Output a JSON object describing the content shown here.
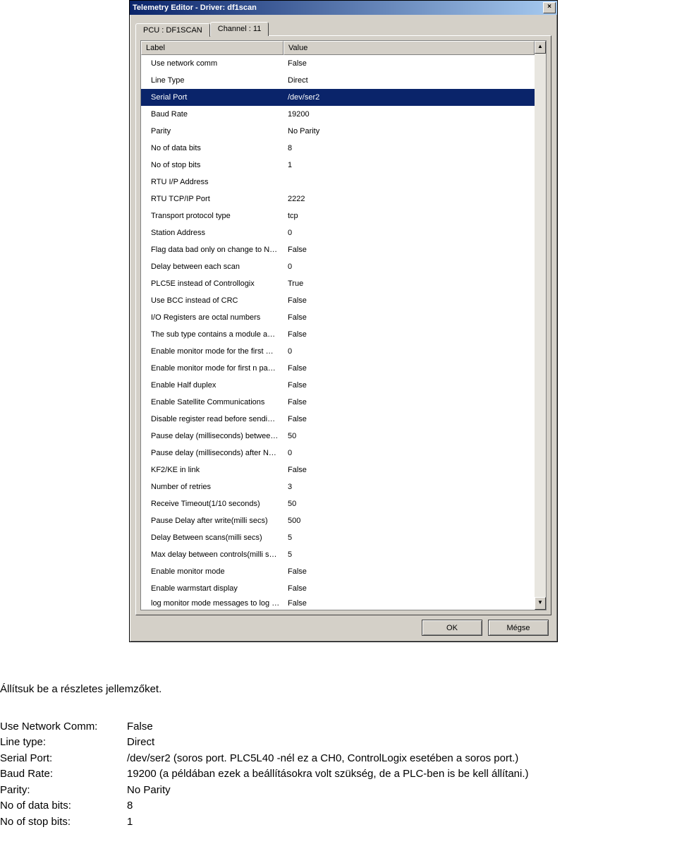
{
  "window": {
    "title": "Telemetry Editor - Driver: df1scan",
    "close_glyph": "×"
  },
  "tabs": {
    "inactive_label": "PCU : DF1SCAN",
    "active_label": "Channel : 11"
  },
  "columns": {
    "label": "Label",
    "value": "Value"
  },
  "rows": [
    {
      "label": "Use network comm",
      "value": "False",
      "selected": false
    },
    {
      "label": "Line Type",
      "value": "Direct",
      "selected": false
    },
    {
      "label": "Serial Port",
      "value": "/dev/ser2",
      "selected": true
    },
    {
      "label": "Baud Rate",
      "value": "19200",
      "selected": false
    },
    {
      "label": "Parity",
      "value": "No Parity",
      "selected": false
    },
    {
      "label": "No of data bits",
      "value": "8",
      "selected": false
    },
    {
      "label": "No of stop bits",
      "value": "1",
      "selected": false
    },
    {
      "label": "RTU I/P Address",
      "value": "",
      "selected": false
    },
    {
      "label": "RTU TCP/IP Port",
      "value": "2222",
      "selected": false
    },
    {
      "label": "Transport protocol type",
      "value": " tcp",
      "selected": false
    },
    {
      "label": "Station Address",
      "value": "0",
      "selected": false
    },
    {
      "label": "Flag data bad only on change to N…",
      "value": "False",
      "selected": false
    },
    {
      "label": "Delay between each scan",
      "value": "0",
      "selected": false
    },
    {
      "label": "PLC5E instead of Controllogix",
      "value": "True",
      "selected": false
    },
    {
      "label": "Use BCC instead of CRC",
      "value": "False",
      "selected": false
    },
    {
      "label": "I/O Registers are octal numbers",
      "value": "False",
      "selected": false
    },
    {
      "label": "The sub type contains a module a…",
      "value": "False",
      "selected": false
    },
    {
      "label": "Enable monitor mode for the first …",
      "value": "0",
      "selected": false
    },
    {
      "label": "Enable monitor mode for first n pa…",
      "value": "False",
      "selected": false
    },
    {
      "label": "Enable Half duplex",
      "value": "False",
      "selected": false
    },
    {
      "label": "Enable Satellite Communications",
      "value": "False",
      "selected": false
    },
    {
      "label": "Disable register read before sendi…",
      "value": "False",
      "selected": false
    },
    {
      "label": "Pause delay (milliseconds) betwee…",
      "value": "50",
      "selected": false
    },
    {
      "label": "Pause delay (milliseconds) after N…",
      "value": "0",
      "selected": false
    },
    {
      "label": "KF2/KE in link",
      "value": "False",
      "selected": false
    },
    {
      "label": "Number of retries",
      "value": "3",
      "selected": false
    },
    {
      "label": "Receive Timeout(1/10 seconds)",
      "value": "50",
      "selected": false
    },
    {
      "label": "Pause Delay after write(milli secs)",
      "value": "500",
      "selected": false
    },
    {
      "label": "Delay Between scans(milli secs)",
      "value": "5",
      "selected": false
    },
    {
      "label": "Max delay between controls(milli s…",
      "value": "5",
      "selected": false
    },
    {
      "label": "Enable monitor mode",
      "value": "False",
      "selected": false
    },
    {
      "label": "Enable warmstart display",
      "value": "False",
      "selected": false
    },
    {
      "label": "log monitor mode messages to log …",
      "value": "False",
      "selected": false,
      "partial": true
    }
  ],
  "buttons": {
    "ok": "OK",
    "cancel": "Mégse"
  },
  "scroll": {
    "up": "▲",
    "down": "▼"
  },
  "doc": {
    "intro": "Állítsuk be a részletes jellemzőket.",
    "lines": [
      {
        "k": "Use Network Comm:",
        "v": "False"
      },
      {
        "k": "Line type:",
        "v": "Direct"
      },
      {
        "k": "Serial Port:",
        "v": "/dev/ser2      (soros port. PLC5L40 -nél ez a CH0, ControlLogix esetében a soros port.)"
      },
      {
        "k": "Baud Rate:",
        "v": "19200   (a példában ezek a beállításokra volt szükség, de a PLC-ben is be kell állítani.)"
      },
      {
        "k": "Parity:",
        "v": "No Parity"
      },
      {
        "k": "No of data bits:",
        "v": "8"
      },
      {
        "k": "No of stop bits:",
        "v": "1"
      }
    ]
  }
}
